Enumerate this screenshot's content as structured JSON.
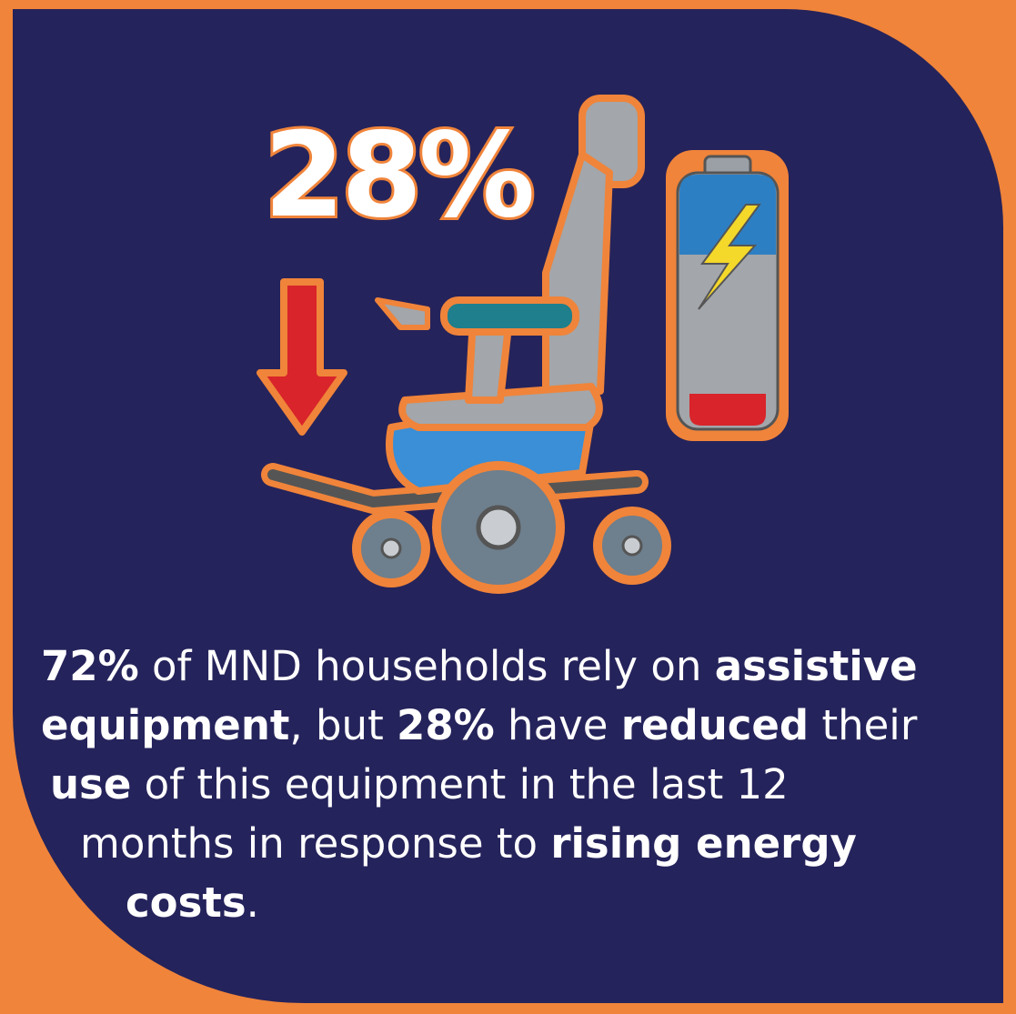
{
  "headline": "28%",
  "text": {
    "lines": [
      [
        {
          "text": "72%",
          "bold": true
        },
        {
          "text": " of MND households rely on ",
          "bold": false
        },
        {
          "text": "assistive",
          "bold": true
        }
      ],
      [
        {
          "text": "equipment",
          "bold": true
        },
        {
          "text": ", but ",
          "bold": false
        },
        {
          "text": "28%",
          "bold": true
        },
        {
          "text": " have ",
          "bold": false
        },
        {
          "text": "reduced",
          "bold": true
        },
        {
          "text": " their",
          "bold": false
        }
      ],
      [
        {
          "text": "use",
          "bold": true
        },
        {
          "text": " of this equipment in the last 12",
          "bold": false
        }
      ],
      [
        {
          "text": "months in response to ",
          "bold": false
        },
        {
          "text": "rising energy",
          "bold": true
        }
      ],
      [
        {
          "text": "costs",
          "bold": true
        },
        {
          "text": ".",
          "bold": false
        }
      ]
    ]
  }
}
